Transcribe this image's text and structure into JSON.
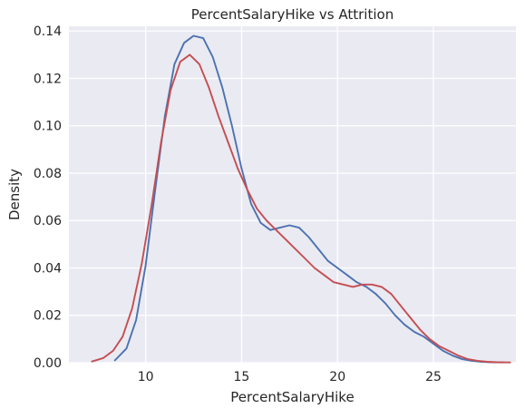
{
  "chart_data": {
    "type": "line",
    "title": "PercentSalaryHike vs Attrition",
    "xlabel": "PercentSalaryHike",
    "ylabel": "Density",
    "xlim": [
      6.0,
      29.3
    ],
    "ylim": [
      0.0,
      0.142
    ],
    "x_ticks": [
      10,
      15,
      20,
      25
    ],
    "y_ticks": [
      0.0,
      0.02,
      0.04,
      0.06,
      0.08,
      0.1,
      0.12,
      0.14
    ],
    "grid": true,
    "legend": "none",
    "colors": {
      "background": "#eaeaf2",
      "grid": "#ffffff",
      "text": "#262626"
    },
    "series": [
      {
        "color": "#4c72b0",
        "x": [
          8.4,
          9.0,
          9.5,
          10.0,
          10.5,
          11.0,
          11.5,
          12.0,
          12.5,
          13.0,
          13.5,
          14.0,
          14.5,
          15.0,
          15.5,
          16.0,
          16.5,
          17.0,
          17.5,
          18.0,
          18.5,
          19.0,
          19.5,
          20.0,
          20.5,
          21.0,
          21.5,
          22.0,
          22.5,
          23.0,
          23.5,
          24.0,
          24.5,
          25.0,
          25.5,
          26.0,
          26.5,
          27.0,
          27.5,
          28.0,
          28.6
        ],
        "y": [
          0.001,
          0.006,
          0.018,
          0.041,
          0.073,
          0.104,
          0.126,
          0.135,
          0.138,
          0.137,
          0.129,
          0.116,
          0.1,
          0.082,
          0.067,
          0.059,
          0.056,
          0.057,
          0.058,
          0.057,
          0.053,
          0.048,
          0.043,
          0.04,
          0.037,
          0.034,
          0.032,
          0.029,
          0.025,
          0.02,
          0.016,
          0.013,
          0.011,
          0.008,
          0.005,
          0.003,
          0.0015,
          0.0008,
          0.0004,
          0.0002,
          0.0001
        ]
      },
      {
        "color": "#c44e52",
        "x": [
          7.2,
          7.8,
          8.3,
          8.8,
          9.3,
          9.8,
          10.3,
          10.8,
          11.3,
          11.8,
          12.3,
          12.8,
          13.3,
          13.8,
          14.3,
          14.8,
          15.3,
          15.8,
          16.3,
          16.8,
          17.3,
          17.8,
          18.3,
          18.8,
          19.3,
          19.8,
          20.3,
          20.8,
          21.3,
          21.8,
          22.3,
          22.8,
          23.3,
          23.8,
          24.3,
          24.8,
          25.3,
          25.8,
          26.3,
          26.8,
          27.3,
          27.8,
          28.3,
          29.0
        ],
        "y": [
          0.0005,
          0.002,
          0.005,
          0.011,
          0.023,
          0.042,
          0.066,
          0.093,
          0.115,
          0.127,
          0.13,
          0.126,
          0.116,
          0.104,
          0.093,
          0.082,
          0.073,
          0.065,
          0.06,
          0.056,
          0.052,
          0.048,
          0.044,
          0.04,
          0.037,
          0.034,
          0.033,
          0.032,
          0.033,
          0.033,
          0.032,
          0.029,
          0.024,
          0.019,
          0.014,
          0.01,
          0.007,
          0.005,
          0.003,
          0.0015,
          0.0008,
          0.0004,
          0.0002,
          0.0001
        ]
      }
    ]
  }
}
